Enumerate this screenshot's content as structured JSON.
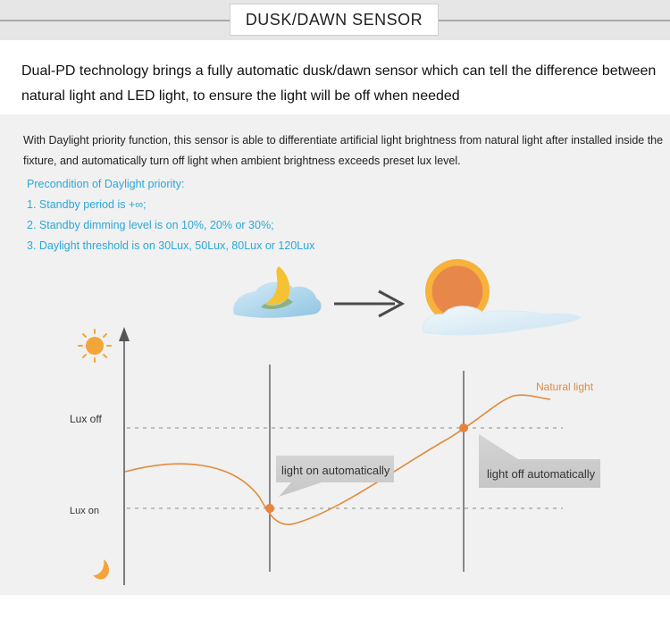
{
  "header": {
    "title": "DUSK/DAWN SENSOR"
  },
  "intro": "Dual-PD technology brings a fully automatic dusk/dawn sensor which can tell the difference between natural light and LED light, to ensure the light will be off when needed",
  "description": "With Daylight priority function, this sensor is able to differentiate artificial light brightness from natural light after installed inside the fixture, and automatically turn off light when ambient brightness exceeds preset lux level.",
  "precondition": {
    "title": "Precondition of Daylight priority:",
    "items": [
      "1. Standby period is +∞;",
      "2. Standby dimming level is on 10%, 20% or 30%;",
      "3. Daylight threshold is on 30Lux, 50Lux, 80Lux or 120Lux"
    ]
  },
  "diagram": {
    "lux_off_label": "Lux off",
    "lux_on_label": "Lux on",
    "curve_label": "Natural light",
    "callout_on": "light on automatically",
    "callout_off": "light off automatically",
    "colors": {
      "curve": "#e08a3c",
      "accent_blue": "#2aa8d8",
      "sun": "#f3a53a",
      "cloud": "#a9d4ec"
    }
  }
}
